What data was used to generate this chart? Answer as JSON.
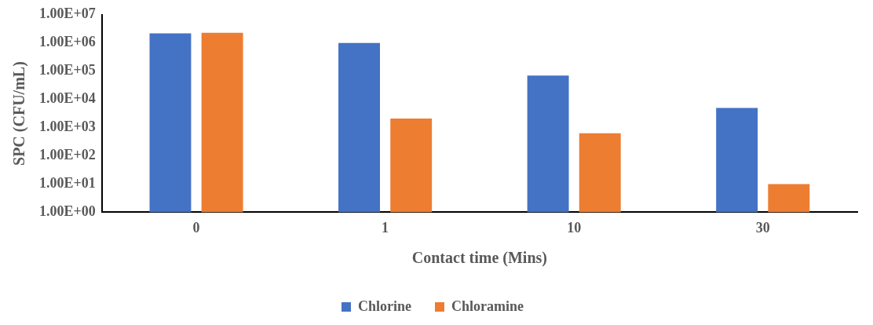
{
  "chart_data": {
    "type": "bar",
    "xlabel": "Contact time (Mins)",
    "ylabel": "SPC (CFU/mL)",
    "categories": [
      "0",
      "1",
      "10",
      "30"
    ],
    "series": [
      {
        "name": "Chlorine",
        "color": "#4472c4",
        "values": [
          2200000,
          1000000,
          70000,
          5000
        ]
      },
      {
        "name": "Chloramine",
        "color": "#ed7d31",
        "values": [
          2300000,
          2100,
          630,
          10
        ]
      }
    ],
    "log": true,
    "ylim": [
      1,
      10000000
    ],
    "yticks": [
      {
        "value": 1,
        "label": "1.00E+00"
      },
      {
        "value": 10,
        "label": "1.00E+01"
      },
      {
        "value": 100,
        "label": "1.00E+02"
      },
      {
        "value": 1000,
        "label": "1.00E+03"
      },
      {
        "value": 10000,
        "label": "1.00E+04"
      },
      {
        "value": 100000,
        "label": "1.00E+05"
      },
      {
        "value": 1000000,
        "label": "1.00E+06"
      },
      {
        "value": 10000000,
        "label": "1.00E+07"
      }
    ],
    "grid": false,
    "legend": "bottom"
  }
}
